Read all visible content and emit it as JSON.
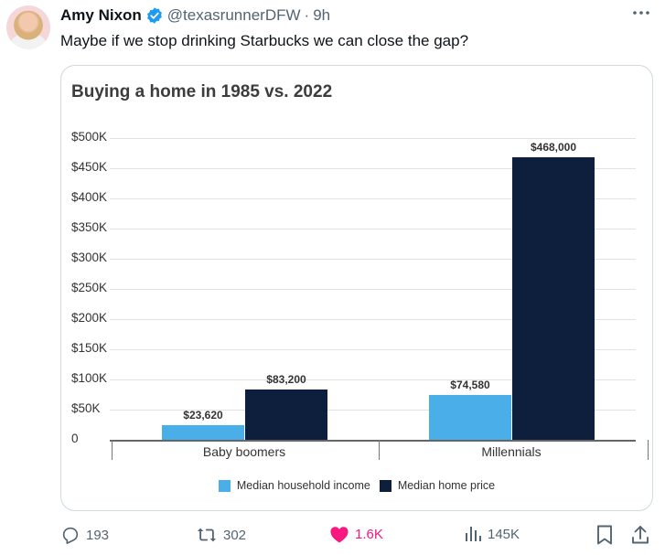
{
  "tweet": {
    "author_name": "Amy Nixon",
    "author_handle": "@texasrunnerDFW",
    "separator": "·",
    "time": "9h",
    "text": "Maybe if we stop drinking Starbucks we can close the gap?",
    "verified_color": "#1d9bf0"
  },
  "actions": {
    "replies": "193",
    "retweets": "302",
    "likes": "1.6K",
    "views": "145K",
    "like_color": "#f91880"
  },
  "chart_data": {
    "type": "bar",
    "title": "Buying a home in 1985 vs. 2022",
    "categories": [
      "Baby boomers",
      "Millennials"
    ],
    "series": [
      {
        "name": "Median household income",
        "values": [
          23620,
          74580
        ],
        "labels": [
          "$23,620",
          "$74,580"
        ],
        "color": "#4aaee9"
      },
      {
        "name": "Median home price",
        "values": [
          83200,
          468000
        ],
        "labels": [
          "$83,200",
          "$468,000"
        ],
        "color": "#0e1f3d"
      }
    ],
    "yticks": [
      "0",
      "$50K",
      "$100K",
      "$150K",
      "$200K",
      "$250K",
      "$300K",
      "$350K",
      "$400K",
      "$450K",
      "$500K"
    ],
    "ylim": [
      0,
      500000
    ],
    "grid": true,
    "legend_position": "bottom"
  }
}
